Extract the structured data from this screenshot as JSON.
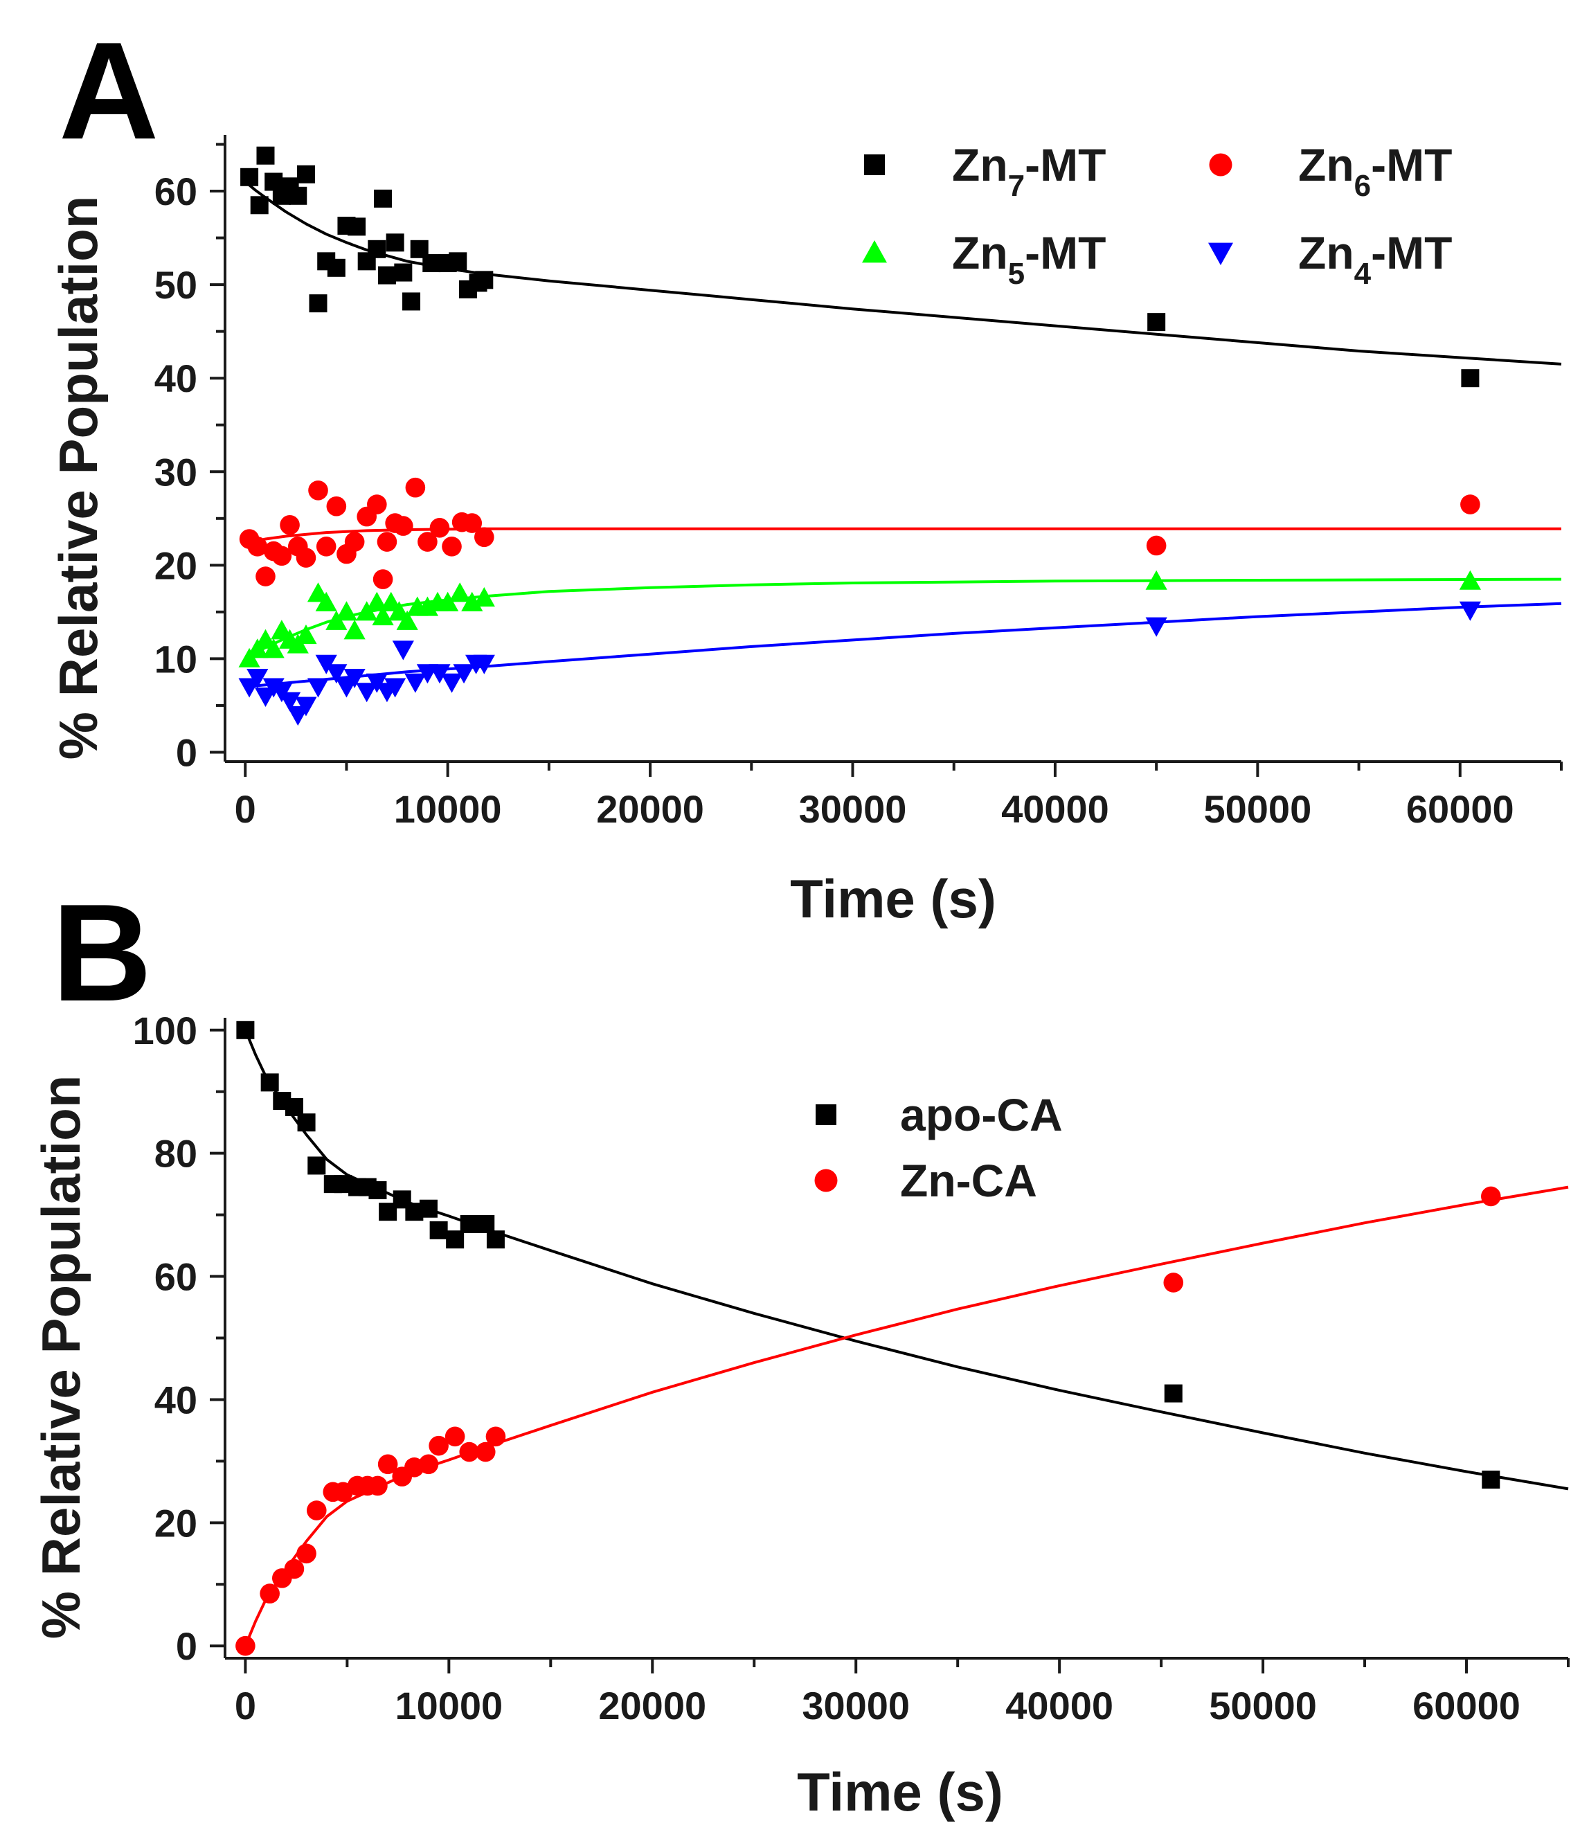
{
  "figure": {
    "panels": [
      "A",
      "B"
    ]
  },
  "chart_data": [
    {
      "id": "A",
      "type": "scatter",
      "panel_label": "A",
      "title": "",
      "xlabel": "Time (s)",
      "ylabel": "% Relative Population",
      "xlim": [
        -1000,
        65000
      ],
      "ylim": [
        -1,
        66
      ],
      "xticks": [
        0,
        10000,
        20000,
        30000,
        40000,
        50000,
        60000
      ],
      "xtick_labels": [
        "0",
        "10000",
        "20000",
        "30000",
        "40000",
        "50000",
        "60000"
      ],
      "yticks": [
        0,
        10,
        20,
        30,
        40,
        50,
        60
      ],
      "ytick_labels": [
        "0",
        "10",
        "20",
        "30",
        "40",
        "50",
        "60"
      ],
      "legend_position": "top-right",
      "series": [
        {
          "name": "Zn7-MT",
          "legend_main": "Zn",
          "legend_sub": "7",
          "legend_suffix": "-MT",
          "marker": "square",
          "color": "#000000",
          "x": [
            200,
            700,
            1000,
            1400,
            1800,
            2200,
            2600,
            3000,
            3600,
            4000,
            4500,
            5000,
            5500,
            6000,
            6500,
            6800,
            7000,
            7400,
            7800,
            8200,
            8600,
            9200,
            10000,
            10500,
            11000,
            11500,
            11800,
            45000,
            60500
          ],
          "y": [
            61.5,
            58.5,
            63.8,
            61,
            59.5,
            60.5,
            59.5,
            61.8,
            48,
            52.5,
            51.8,
            56.3,
            56.2,
            52.5,
            53.8,
            59.2,
            51,
            54.5,
            51.3,
            48.2,
            53.8,
            52.3,
            52.3,
            52.5,
            49.5,
            50.2,
            50.5,
            46,
            40
          ],
          "fit": {
            "x": [
              0,
              500,
              1000,
              2000,
              3000,
              4000,
              5000,
              6000,
              8000,
              10000,
              12000,
              15000,
              20000,
              25000,
              30000,
              35000,
              40000,
              45000,
              50000,
              55000,
              60000,
              65000
            ],
            "y": [
              61,
              60.1,
              59.3,
              57.8,
              56.5,
              55.4,
              54.5,
              53.7,
              52.5,
              51.7,
              51.1,
              50.4,
              49.4,
              48.4,
              47.4,
              46.5,
              45.6,
              44.7,
              43.8,
              42.9,
              42.2,
              41.5
            ]
          }
        },
        {
          "name": "Zn6-MT",
          "legend_main": "Zn",
          "legend_sub": "6",
          "legend_suffix": "-MT",
          "marker": "circle",
          "color": "#ff0000",
          "x": [
            200,
            600,
            1000,
            1400,
            1800,
            2200,
            2600,
            3000,
            3600,
            4000,
            4500,
            5000,
            5400,
            6000,
            6500,
            6800,
            7000,
            7400,
            7800,
            8400,
            9000,
            9600,
            10200,
            10700,
            11200,
            11800,
            45000,
            60500
          ],
          "y": [
            22.8,
            22,
            18.8,
            21.5,
            21,
            24.3,
            22,
            20.8,
            28,
            22,
            26.3,
            21.2,
            22.5,
            25.2,
            26.5,
            18.5,
            22.5,
            24.5,
            24.2,
            28.3,
            22.5,
            24,
            22,
            24.6,
            24.5,
            23,
            22.1,
            26.5
          ],
          "fit": {
            "x": [
              0,
              1000,
              2000,
              4000,
              6000,
              8000,
              12000,
              20000,
              40000,
              65000
            ],
            "y": [
              22.3,
              22.8,
              23.1,
              23.5,
              23.7,
              23.8,
              23.9,
              23.9,
              23.9,
              23.9
            ]
          }
        },
        {
          "name": "Zn5-MT",
          "legend_main": "Zn",
          "legend_sub": "5",
          "legend_suffix": "-MT",
          "marker": "triangle-up",
          "color": "#00ff00",
          "x": [
            200,
            600,
            1000,
            1400,
            1800,
            2200,
            2600,
            3000,
            3600,
            4000,
            4500,
            5000,
            5400,
            6000,
            6500,
            6800,
            7200,
            7600,
            8000,
            8500,
            9000,
            9500,
            10000,
            10600,
            11200,
            11800,
            45000,
            60500
          ],
          "y": [
            10,
            11,
            12,
            11,
            13,
            12,
            11.5,
            12.5,
            17,
            16,
            14,
            15,
            13,
            15,
            16,
            14.5,
            16,
            15,
            14,
            15.5,
            15.5,
            16,
            16,
            17,
            16,
            16.5,
            18.3,
            18.3
          ],
          "fit": {
            "x": [
              0,
              1000,
              2000,
              3000,
              4000,
              5000,
              6000,
              8000,
              10000,
              12000,
              15000,
              20000,
              25000,
              30000,
              40000,
              50000,
              65000
            ],
            "y": [
              10,
              11.2,
              12.2,
              13.1,
              13.9,
              14.5,
              15,
              15.8,
              16.3,
              16.7,
              17.2,
              17.6,
              17.9,
              18.1,
              18.3,
              18.4,
              18.5
            ]
          }
        },
        {
          "name": "Zn4-MT",
          "legend_main": "Zn",
          "legend_sub": "4",
          "legend_suffix": "-MT",
          "marker": "triangle-down",
          "color": "#0000ff",
          "x": [
            200,
            600,
            1000,
            1400,
            1800,
            2200,
            2600,
            3000,
            3600,
            4000,
            4500,
            5000,
            5400,
            6000,
            6500,
            7000,
            7400,
            7800,
            8400,
            9000,
            9600,
            10200,
            10800,
            11400,
            11800,
            45000,
            60500
          ],
          "y": [
            7,
            8,
            6,
            7,
            6.5,
            5.5,
            4,
            5,
            7,
            9.5,
            8.5,
            7,
            8,
            6.5,
            7.5,
            6.5,
            7,
            11,
            7.5,
            8.5,
            8.5,
            7.5,
            8.5,
            9.5,
            9.5,
            13.5,
            15.2
          ],
          "fit": {
            "x": [
              0,
              1000,
              2000,
              3000,
              4000,
              6000,
              8000,
              10000,
              12000,
              15000,
              20000,
              25000,
              30000,
              35000,
              40000,
              45000,
              50000,
              55000,
              60000,
              65000
            ],
            "y": [
              7,
              7.2,
              7.4,
              7.6,
              7.8,
              8.2,
              8.6,
              8.9,
              9.2,
              9.7,
              10.5,
              11.3,
              12,
              12.7,
              13.3,
              13.9,
              14.5,
              15,
              15.5,
              15.9
            ]
          }
        }
      ]
    },
    {
      "id": "B",
      "type": "scatter",
      "panel_label": "B",
      "title": "",
      "xlabel": "Time (s)",
      "ylabel": "% Relative Population",
      "xlim": [
        -1000,
        65000
      ],
      "ylim": [
        -2,
        102
      ],
      "xticks": [
        0,
        10000,
        20000,
        30000,
        40000,
        50000,
        60000
      ],
      "xtick_labels": [
        "0",
        "10000",
        "20000",
        "30000",
        "40000",
        "50000",
        "60000"
      ],
      "yticks": [
        0,
        20,
        40,
        60,
        80,
        100
      ],
      "ytick_labels": [
        "0",
        "20",
        "40",
        "60",
        "80",
        "100"
      ],
      "legend_position": "top-center",
      "series": [
        {
          "name": "apo-CA",
          "legend_main": "apo-CA",
          "legend_sub": "",
          "legend_suffix": "",
          "marker": "square",
          "color": "#000000",
          "x": [
            0,
            1200,
            1800,
            2400,
            3000,
            3500,
            4300,
            4800,
            5500,
            6000,
            6500,
            7000,
            7700,
            8300,
            9000,
            9500,
            10300,
            11000,
            11800,
            12300,
            45600,
            61200
          ],
          "y": [
            100,
            91.5,
            88.5,
            87.5,
            85,
            78,
            75,
            75,
            74.5,
            74.5,
            74,
            70.5,
            72.5,
            70.5,
            71,
            67.5,
            66,
            68.5,
            68.5,
            66,
            41,
            27
          ],
          "fit": {
            "x": [
              0,
              500,
              1000,
              2000,
              3000,
              4000,
              5000,
              6000,
              8000,
              10000,
              12000,
              15000,
              20000,
              25000,
              30000,
              35000,
              40000,
              45000,
              50000,
              55000,
              60000,
              65000
            ],
            "y": [
              100,
              96,
              92.5,
              87.5,
              83,
              79,
              76.5,
              75,
              72,
              69.8,
              67.5,
              64.2,
              58.8,
              54,
              49.5,
              45.3,
              41.5,
              38,
              34.6,
              31.3,
              28.3,
              25.5
            ]
          }
        },
        {
          "name": "Zn-CA",
          "legend_main": "Zn-CA",
          "legend_sub": "",
          "legend_suffix": "",
          "marker": "circle",
          "color": "#ff0000",
          "x": [
            0,
            1200,
            1800,
            2400,
            3000,
            3500,
            4300,
            4800,
            5500,
            6000,
            6500,
            7000,
            7700,
            8300,
            9000,
            9500,
            10300,
            11000,
            11800,
            12300,
            45600,
            61200
          ],
          "y": [
            0,
            8.5,
            11,
            12.5,
            15,
            22,
            25,
            25,
            26,
            26,
            26,
            29.5,
            27.5,
            29,
            29.5,
            32.5,
            34,
            31.5,
            31.5,
            34,
            59,
            73
          ],
          "fit": {
            "x": [
              0,
              500,
              1000,
              2000,
              3000,
              4000,
              5000,
              6000,
              8000,
              10000,
              12000,
              15000,
              20000,
              25000,
              30000,
              35000,
              40000,
              45000,
              50000,
              55000,
              60000,
              65000
            ],
            "y": [
              0,
              4,
              7.5,
              12.5,
              17,
              21,
              23.5,
              25,
              28,
              30.2,
              32.5,
              35.8,
              41.2,
              46,
              50.5,
              54.7,
              58.5,
              62,
              65.4,
              68.7,
              71.7,
              74.5
            ]
          }
        }
      ]
    }
  ]
}
